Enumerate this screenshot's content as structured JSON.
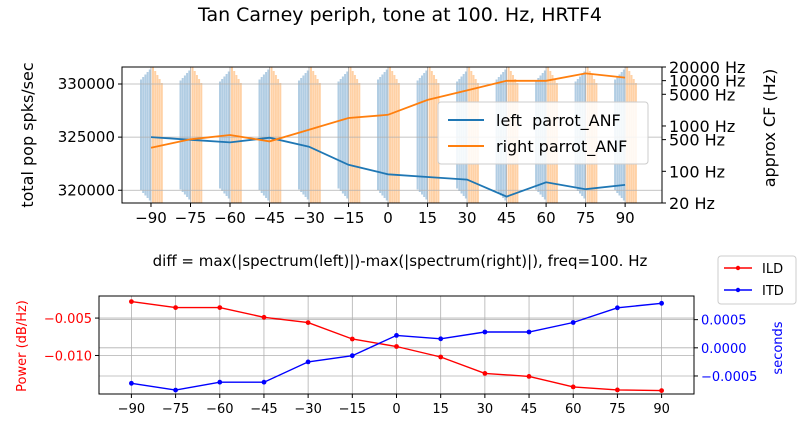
{
  "chart_data": [
    {
      "type": "line",
      "title": "Tan Carney periph, tone at 100. Hz, HRTF4",
      "ylabel": "total pop spks/sec",
      "ylabel_right": "approx CF (Hz)",
      "x": [
        -90,
        -75,
        -60,
        -45,
        -30,
        -15,
        0,
        15,
        30,
        45,
        60,
        75,
        90
      ],
      "x_ticks": [
        "−90",
        "−75",
        "−60",
        "−45",
        "−30",
        "−15",
        "0",
        "15",
        "30",
        "45",
        "60",
        "75",
        "90"
      ],
      "y_ticks": [
        {
          "value": 320000,
          "label": "320000"
        },
        {
          "value": 325000,
          "label": "325000"
        },
        {
          "value": 330000,
          "label": "330000"
        }
      ],
      "right_ticks": [
        {
          "cf": 20,
          "label": "20 Hz"
        },
        {
          "cf": 100,
          "label": "100 Hz"
        },
        {
          "cf": 500,
          "label": "500 Hz"
        },
        {
          "cf": 1000,
          "label": "1000 Hz"
        },
        {
          "cf": 5000,
          "label": "5000 Hz"
        },
        {
          "cf": 10000,
          "label": "10000 Hz"
        },
        {
          "cf": 20000,
          "label": "20000 Hz"
        }
      ],
      "xlim": [
        -101,
        104
      ],
      "ylim": [
        318800,
        331600
      ],
      "series": [
        {
          "name": "left  parrot_ANF",
          "color": "#1f77b4",
          "values": [
            325000,
            324750,
            324500,
            324950,
            324100,
            322400,
            321500,
            321250,
            321000,
            319400,
            320750,
            320100,
            320500
          ]
        },
        {
          "name": "right parrot_ANF",
          "color": "#ff7f0e",
          "values": [
            324000,
            324800,
            325200,
            324600,
            325700,
            326800,
            327100,
            328500,
            329400,
            330300,
            330300,
            331000,
            330600
          ]
        }
      ],
      "legend_position": "center-right",
      "grid": true,
      "background_raster": {
        "left_color": "#a8c8e0",
        "right_color": "#ffcfa0"
      }
    },
    {
      "type": "line",
      "title": "diff = max(|spectrum(left)|)-max(|spectrum(right)|), freq=100. Hz",
      "ylabel": "Power (dB/Hz)",
      "ylabel_right": "seconds",
      "x": [
        -90,
        -75,
        -60,
        -45,
        -30,
        -15,
        0,
        15,
        30,
        45,
        60,
        75,
        90
      ],
      "x_ticks": [
        "−90",
        "−75",
        "−60",
        "−45",
        "−30",
        "−15",
        "0",
        "15",
        "30",
        "45",
        "60",
        "75",
        "90"
      ],
      "y_ticks": [
        {
          "value": -0.005,
          "label": "−0.005"
        },
        {
          "value": -0.01,
          "label": "−0.010"
        }
      ],
      "right_ticks": [
        {
          "value": 0.0005,
          "label": "0.0005"
        },
        {
          "value": 0.0,
          "label": "0.0000"
        },
        {
          "value": -0.0005,
          "label": "−0.0005"
        }
      ],
      "xlim": [
        -101,
        101
      ],
      "ylim": [
        -0.01515,
        -0.00205
      ],
      "ylim_right": [
        -0.00082,
        0.00092
      ],
      "series": [
        {
          "name": "ILD",
          "color": "#ff0000",
          "axis": "left",
          "values": [
            -0.0028,
            -0.0036,
            -0.0036,
            -0.0049,
            -0.0056,
            -0.0078,
            -0.0088,
            -0.0102,
            -0.0124,
            -0.0128,
            -0.0142,
            -0.0146,
            -0.0147
          ]
        },
        {
          "name": "ITD",
          "color": "#0000ff",
          "axis": "right",
          "values": [
            -0.00063,
            -0.00075,
            -0.00061,
            -0.00061,
            -0.00025,
            -0.00014,
            0.00022,
            0.00016,
            0.00028,
            0.00028,
            0.00045,
            0.00071,
            0.00079
          ]
        }
      ],
      "legend_position": "top-right outside",
      "grid": true
    }
  ]
}
